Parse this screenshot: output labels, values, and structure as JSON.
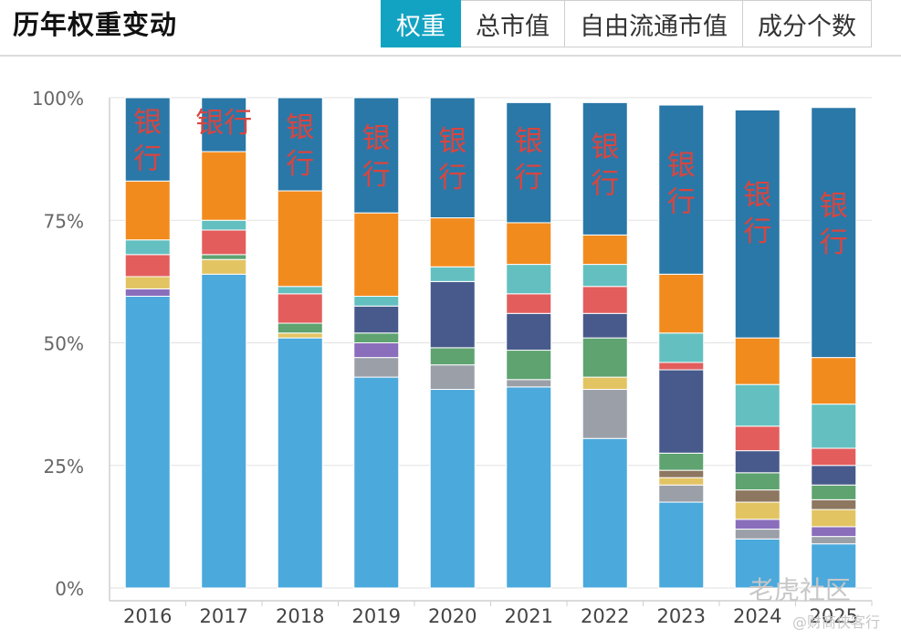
{
  "header": {
    "title": "历年权重变动",
    "tabs": [
      {
        "label": "权重",
        "active": true
      },
      {
        "label": "总市值",
        "active": false
      },
      {
        "label": "自由流通市值",
        "active": false
      },
      {
        "label": "成分个数",
        "active": false
      }
    ]
  },
  "watermark": {
    "logo": "老虎社区",
    "sub": "@财商侠客行"
  },
  "colors": {
    "accent": "#13a3c2",
    "annotation": "#d9453f"
  },
  "chart_data": {
    "type": "bar",
    "stacked": true,
    "categories": [
      "2016",
      "2017",
      "2018",
      "2019",
      "2020",
      "2021",
      "2022",
      "2023",
      "2024",
      "2025"
    ],
    "yticks": [
      "0%",
      "25%",
      "50%",
      "75%",
      "100%"
    ],
    "ylim": [
      0,
      100
    ],
    "segment_colors": [
      "#4ba9dc",
      "#9b9fa8",
      "#8a6ebb",
      "#e3c463",
      "#8d7760",
      "#5ea370",
      "#485a8c",
      "#e35d5d",
      "#64c0c0",
      "#f28b1e",
      "#2a78a8"
    ],
    "series": [
      {
        "color": "#4ba9dc",
        "values": [
          59.5,
          64,
          51,
          43,
          40.5,
          41,
          30.5,
          17.5,
          10,
          9
        ]
      },
      {
        "color": "#9b9fa8",
        "values": [
          0,
          0,
          0,
          4,
          5,
          1.5,
          10,
          3.5,
          2,
          1.5
        ]
      },
      {
        "color": "#8a6ebb",
        "values": [
          1.5,
          0,
          0,
          3,
          0,
          0,
          0,
          0,
          2,
          2
        ]
      },
      {
        "color": "#e3c463",
        "values": [
          2.5,
          3,
          1,
          0,
          0,
          0,
          2.5,
          1.5,
          3.5,
          3.5
        ]
      },
      {
        "color": "#8d7760",
        "values": [
          0,
          0,
          0,
          0,
          0,
          0,
          0,
          1.5,
          2.5,
          2
        ]
      },
      {
        "color": "#5ea370",
        "values": [
          0,
          1,
          2,
          2,
          3.5,
          6,
          8,
          3.5,
          3.5,
          3
        ]
      },
      {
        "color": "#485a8c",
        "values": [
          0,
          0,
          0,
          5.5,
          13.5,
          7.5,
          5,
          17,
          4.5,
          4
        ]
      },
      {
        "color": "#e35d5d",
        "values": [
          4.5,
          5,
          6,
          0,
          0,
          4,
          5.5,
          1.5,
          5,
          3.5
        ]
      },
      {
        "color": "#64c0c0",
        "values": [
          3,
          2,
          1.5,
          2,
          3,
          6,
          4.5,
          6,
          8.5,
          9
        ]
      },
      {
        "color": "#f28b1e",
        "values": [
          12,
          14,
          19.5,
          17,
          10,
          8.5,
          6,
          12,
          9.5,
          9.5
        ]
      },
      {
        "color": "#2a78a8",
        "values": [
          17,
          11,
          19,
          23.5,
          24.5,
          24.5,
          27,
          34.5,
          46.5,
          51
        ]
      }
    ],
    "annotations": [
      {
        "category": "2016",
        "text": "银行",
        "layout": "vertical"
      },
      {
        "category": "2017",
        "text": "银行",
        "layout": "horizontal"
      },
      {
        "category": "2018",
        "text": "银行",
        "layout": "vertical"
      },
      {
        "category": "2019",
        "text": "银行",
        "layout": "vertical"
      },
      {
        "category": "2020",
        "text": "银行",
        "layout": "vertical"
      },
      {
        "category": "2021",
        "text": "银行",
        "layout": "vertical"
      },
      {
        "category": "2022",
        "text": "银行",
        "layout": "vertical"
      },
      {
        "category": "2023",
        "text": "银行",
        "layout": "vertical"
      },
      {
        "category": "2024",
        "text": "银行",
        "layout": "vertical"
      },
      {
        "category": "2025",
        "text": "银行",
        "layout": "vertical"
      }
    ],
    "grid": true,
    "legend": "none"
  }
}
